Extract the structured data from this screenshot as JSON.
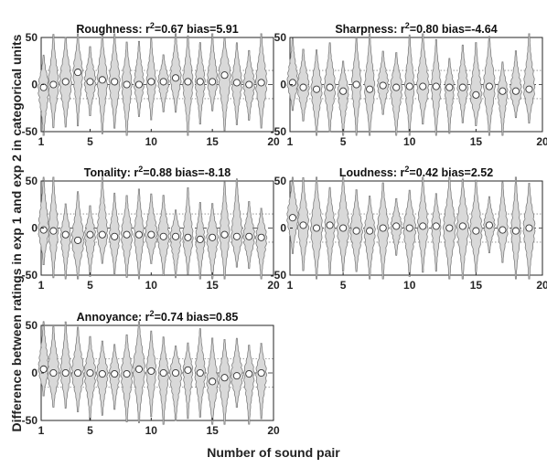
{
  "figure": {
    "ylabel": "Difference between ratings in exp 1 and exp 2 in categorical units",
    "xlabel": "Number of sound pair"
  },
  "colors": {
    "violin_fill": "#d9d9d9",
    "violin_stroke": "#7f7f7f",
    "marker_fill": "#ffffff",
    "marker_stroke": "#333333",
    "zero_line": "#555555",
    "dotted_line": "#888888"
  },
  "chart_data": [
    {
      "type": "violin",
      "title_prefix": "Roughness: ",
      "r2_label": "r",
      "r2_sup": "2",
      "r2_value": "=0.67",
      "bias_label": " bias=5.91",
      "xlim": [
        1,
        20
      ],
      "ylim": [
        -50,
        50
      ],
      "xticks": [
        1,
        5,
        10,
        15,
        20
      ],
      "yticks": [
        -50,
        0,
        50
      ],
      "dotted_lines": [
        15,
        -15
      ],
      "x": [
        1.2,
        2,
        3,
        4,
        5,
        6,
        7,
        8,
        9,
        10,
        11,
        12,
        13,
        14,
        15,
        16,
        17,
        18,
        19
      ],
      "medians": [
        -3,
        0,
        3,
        13,
        3,
        5,
        3,
        0,
        0,
        3,
        3,
        7,
        3,
        3,
        3,
        10,
        2,
        0,
        2
      ]
    },
    {
      "type": "violin",
      "title_prefix": "Sharpness: ",
      "r2_label": "r",
      "r2_sup": "2",
      "r2_value": "=0.80",
      "bias_label": " bias=-4.64",
      "xlim": [
        1,
        20
      ],
      "ylim": [
        -50,
        50
      ],
      "xticks": [
        1,
        5,
        10,
        15,
        20
      ],
      "yticks": [
        -50,
        0,
        50
      ],
      "dotted_lines": [
        15,
        -15
      ],
      "x": [
        1.2,
        2,
        3,
        4,
        5,
        6,
        7,
        8,
        9,
        10,
        11,
        12,
        13,
        14,
        15,
        16,
        17,
        18,
        19
      ],
      "medians": [
        2,
        -3,
        -5,
        -3,
        -7,
        0,
        -5,
        -1,
        -3,
        -2,
        -2,
        -2,
        -3,
        -3,
        -11,
        -2,
        -7,
        -7,
        -5
      ]
    },
    {
      "type": "violin",
      "title_prefix": "Tonality: ",
      "r2_label": "r",
      "r2_sup": "2",
      "r2_value": "=0.88",
      "bias_label": " bias=-8.18",
      "xlim": [
        1,
        20
      ],
      "ylim": [
        -50,
        50
      ],
      "xticks": [
        1,
        5,
        10,
        15,
        20
      ],
      "yticks": [
        -50,
        0,
        50
      ],
      "dotted_lines": [
        15,
        -15
      ],
      "x": [
        1.2,
        2,
        3,
        4,
        5,
        6,
        7,
        8,
        9,
        10,
        11,
        12,
        13,
        14,
        15,
        16,
        17,
        18,
        19
      ],
      "medians": [
        -2,
        -3,
        -7,
        -13,
        -7,
        -7,
        -9,
        -7,
        -7,
        -7,
        -9,
        -9,
        -10,
        -12,
        -10,
        -7,
        -9,
        -9,
        -10
      ]
    },
    {
      "type": "violin",
      "title_prefix": "Loudness: ",
      "r2_label": "r",
      "r2_sup": "2",
      "r2_value": "=0.42",
      "bias_label": " bias=2.52",
      "xlim": [
        1,
        20
      ],
      "ylim": [
        -50,
        50
      ],
      "xticks": [
        1,
        5,
        10,
        15,
        20
      ],
      "yticks": [
        -50,
        0,
        50
      ],
      "dotted_lines": [
        15,
        -15
      ],
      "x": [
        1.2,
        2,
        3,
        4,
        5,
        6,
        7,
        8,
        9,
        10,
        11,
        12,
        13,
        14,
        15,
        16,
        17,
        18,
        19
      ],
      "medians": [
        11,
        3,
        0,
        3,
        0,
        -3,
        -3,
        0,
        2,
        0,
        2,
        2,
        0,
        2,
        -3,
        3,
        -2,
        -3,
        0
      ]
    },
    {
      "type": "violin",
      "title_prefix": "Annoyance: ",
      "r2_label": "r",
      "r2_sup": "2",
      "r2_value": "=0.74",
      "bias_label": " bias=0.85",
      "xlim": [
        1,
        20
      ],
      "ylim": [
        -50,
        50
      ],
      "xticks": [
        1,
        5,
        10,
        15,
        20
      ],
      "yticks": [
        -50,
        0,
        50
      ],
      "dotted_lines": [
        15,
        -15
      ],
      "x": [
        1.2,
        2,
        3,
        4,
        5,
        6,
        7,
        8,
        9,
        10,
        11,
        12,
        13,
        14,
        15,
        16,
        17,
        18,
        19
      ],
      "medians": [
        4,
        0,
        0,
        0,
        0,
        -1,
        -1,
        -1,
        4,
        2,
        0,
        0,
        3,
        0,
        -9,
        -5,
        -3,
        -1,
        0
      ]
    }
  ]
}
